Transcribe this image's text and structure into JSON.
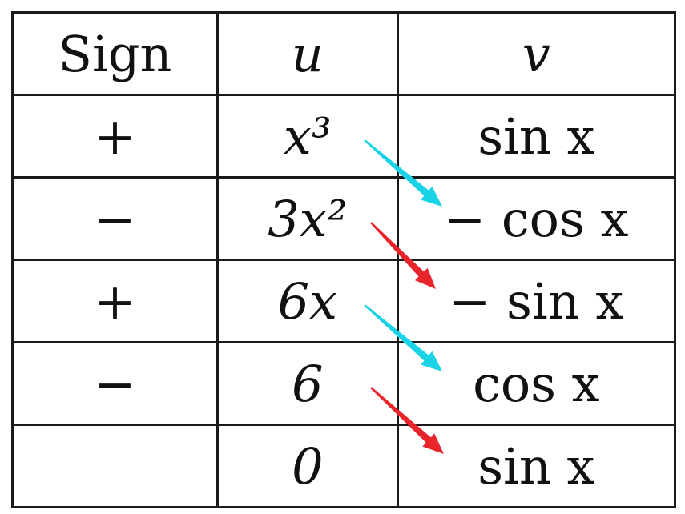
{
  "header": {
    "sign": "Sign",
    "u": "u",
    "v": "v"
  },
  "rows": [
    {
      "sign": "+",
      "u": "x³",
      "v": "sin x"
    },
    {
      "sign": "−",
      "u": "3x²",
      "v": "− cos x"
    },
    {
      "sign": "+",
      "u": "6x",
      "v": "− sin x"
    },
    {
      "sign": "−",
      "u": "6",
      "v": "cos x"
    },
    {
      "sign": "",
      "u": "0",
      "v": "sin x"
    }
  ],
  "arrows": [
    {
      "from_row": 0,
      "to_row": 1,
      "color": "#1ad3e6"
    },
    {
      "from_row": 1,
      "to_row": 2,
      "color": "#e8252a"
    },
    {
      "from_row": 2,
      "to_row": 3,
      "color": "#1ad3e6"
    },
    {
      "from_row": 3,
      "to_row": 4,
      "color": "#e8252a"
    }
  ],
  "colors": {
    "grid_line": "#1a1a1a",
    "text": "#111111",
    "positive_arrow": "#1ad3e6",
    "negative_arrow": "#e8252a"
  }
}
